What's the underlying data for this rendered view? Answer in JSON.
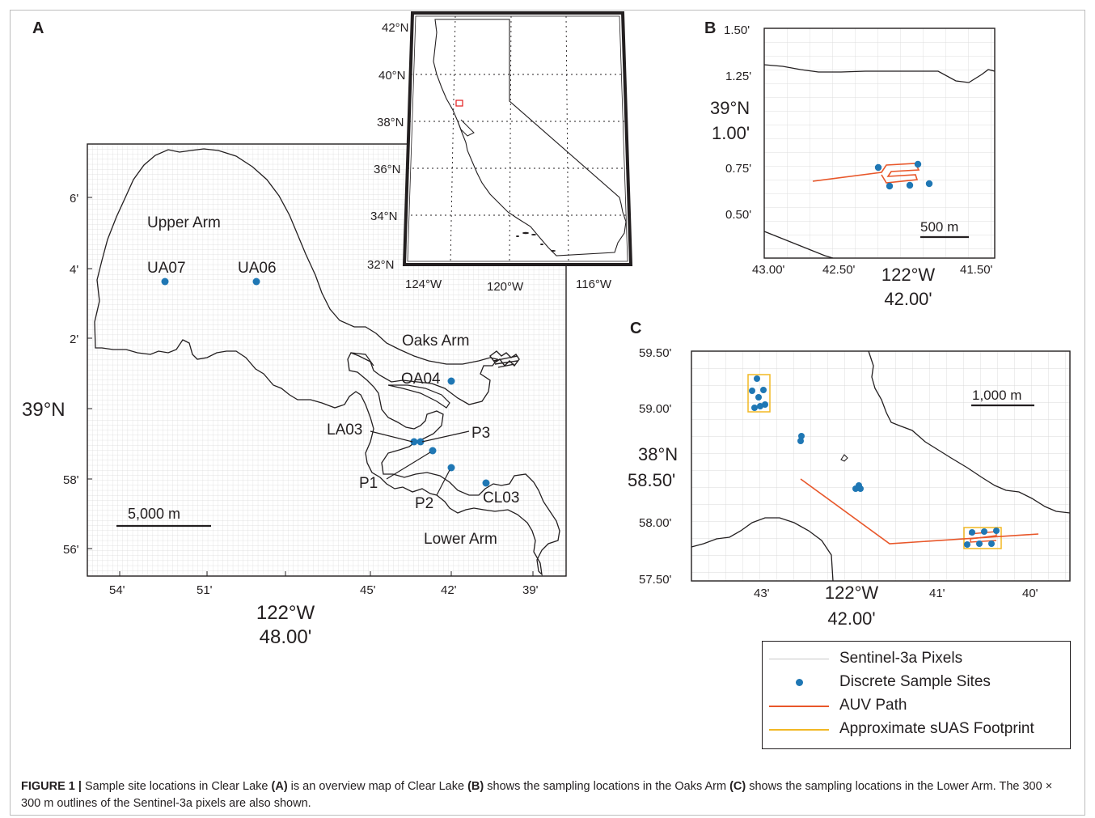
{
  "panels": {
    "a_letter": "A",
    "b_letter": "B",
    "c_letter": "C"
  },
  "map_a": {
    "lon_ticks": [
      "54'",
      "51'",
      "45'",
      "42'",
      "39'"
    ],
    "lon_main": [
      "122°W",
      "48.00'"
    ],
    "lat_ticks": [
      "6'",
      "4'",
      "2'",
      "58'",
      "56'"
    ],
    "lat_main": "39°N",
    "regions": [
      "Upper Arm",
      "Oaks Arm",
      "Lower Arm"
    ],
    "sites": [
      "UA07",
      "UA06",
      "OA04",
      "LA03",
      "P3",
      "P1",
      "P2",
      "CL03"
    ],
    "scalebar": "5,000 m"
  },
  "inset": {
    "lat_ticks": [
      "42°N",
      "40°N",
      "38°N",
      "36°N",
      "34°N",
      "32°N"
    ],
    "lon_ticks": [
      "124°W",
      "120°W",
      "116°W"
    ]
  },
  "map_b": {
    "lat_ticks": [
      "1.50'",
      "1.25'",
      "0.75'",
      "0.50'"
    ],
    "lat_main": [
      "39°N",
      "1.00'"
    ],
    "lon_ticks": [
      "43.00'",
      "42.50'",
      "41.50'"
    ],
    "lon_main": [
      "122°W",
      "42.00'"
    ],
    "scalebar": "500 m"
  },
  "map_c": {
    "lat_ticks": [
      "59.50'",
      "59.00'",
      "58.00'",
      "57.50'"
    ],
    "lat_main": [
      "38°N",
      "58.50'"
    ],
    "lon_ticks": [
      "43'",
      "41'",
      "40'"
    ],
    "lon_main": [
      "122°W",
      "42.00'"
    ],
    "scalebar": "1,000 m"
  },
  "legend": {
    "items": [
      {
        "label": "Sentinel-3a Pixels",
        "symbol": "thin-line",
        "color": "#c8c8c8"
      },
      {
        "label": "Discrete Sample Sites",
        "symbol": "dot",
        "color": "#1f77b4"
      },
      {
        "label": "AUV Path",
        "symbol": "line",
        "color": "#e8572a"
      },
      {
        "label": "Approximate sUAS Footprint",
        "symbol": "line",
        "color": "#f2b824"
      }
    ]
  },
  "caption": {
    "fig_label": "FIGURE 1 |",
    "t1": " Sample site locations in Clear Lake ",
    "ref_a": "(A)",
    "t2": " is an overview map of Clear Lake ",
    "ref_b": "(B)",
    "t3": " shows the sampling locations in the Oaks Arm ",
    "ref_c": "(C)",
    "t4": " shows the sampling locations in the Lower Arm. The 300 × 300 m outlines of the Sentinel-3a pixels are also shown."
  },
  "colors": {
    "site": "#1f77b4",
    "auv": "#e8572a",
    "suas": "#f2b824",
    "inset_box": "#e31a1c",
    "grid": "#d9d9d9"
  }
}
